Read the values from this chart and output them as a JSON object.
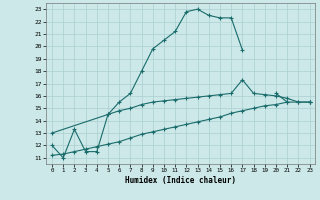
{
  "xlabel": "Humidex (Indice chaleur)",
  "bg_color": "#cce8e8",
  "grid_color": "#aacfcf",
  "line_color": "#1a6b6b",
  "xlim": [
    -0.5,
    23.5
  ],
  "ylim": [
    10.5,
    23.5
  ],
  "xticks": [
    0,
    1,
    2,
    3,
    4,
    5,
    6,
    7,
    8,
    9,
    10,
    11,
    12,
    13,
    14,
    15,
    16,
    17,
    18,
    19,
    20,
    21,
    22,
    23
  ],
  "yticks": [
    11,
    12,
    13,
    14,
    15,
    16,
    17,
    18,
    19,
    20,
    21,
    22,
    23
  ],
  "line1_x": [
    0,
    1,
    2,
    3,
    4,
    5,
    6,
    7,
    8,
    9,
    10,
    11,
    12,
    13,
    14,
    15,
    16,
    17,
    18,
    19,
    20,
    21,
    22,
    23
  ],
  "line1_y": [
    12.0,
    11.0,
    13.3,
    11.5,
    11.5,
    14.5,
    15.5,
    16.2,
    18.0,
    19.8,
    20.5,
    21.2,
    22.8,
    23.0,
    22.5,
    22.3,
    22.3,
    19.7,
    null,
    null,
    16.2,
    15.5,
    null,
    15.5
  ],
  "line2_x": [
    0,
    5,
    6,
    7,
    8,
    9,
    10,
    11,
    12,
    13,
    14,
    15,
    16,
    17,
    18,
    19,
    20,
    21,
    22,
    23
  ],
  "line2_y": [
    13.0,
    14.5,
    14.8,
    15.0,
    15.3,
    15.5,
    15.6,
    15.7,
    15.8,
    15.9,
    16.0,
    16.1,
    16.2,
    17.3,
    16.2,
    16.1,
    16.0,
    15.8,
    15.5,
    15.5
  ],
  "line3_x": [
    0,
    1,
    2,
    3,
    4,
    5,
    6,
    7,
    8,
    9,
    10,
    11,
    12,
    13,
    14,
    15,
    16,
    17,
    18,
    19,
    20,
    21,
    22,
    23
  ],
  "line3_y": [
    11.2,
    11.3,
    11.5,
    11.7,
    11.9,
    12.1,
    12.3,
    12.6,
    12.9,
    13.1,
    13.3,
    13.5,
    13.7,
    13.9,
    14.1,
    14.3,
    14.6,
    14.8,
    15.0,
    15.2,
    15.3,
    15.5,
    15.5,
    15.5
  ]
}
